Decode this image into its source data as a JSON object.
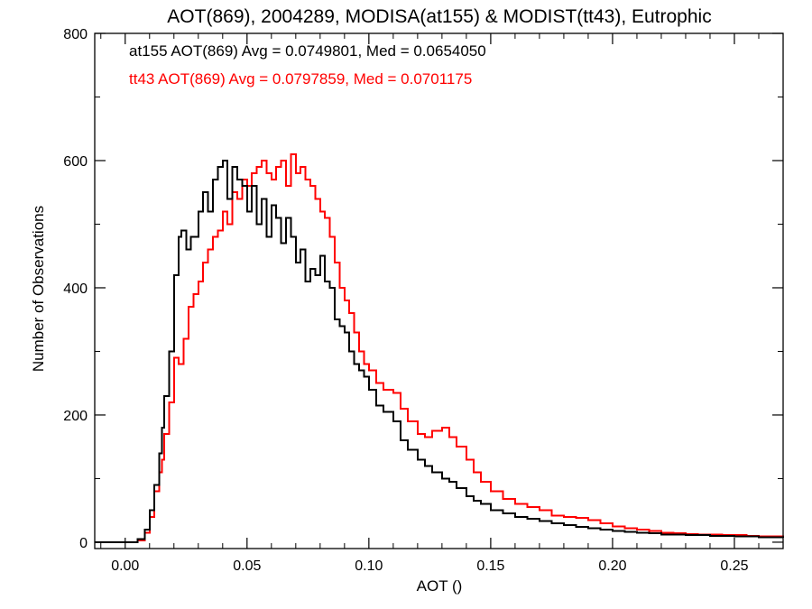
{
  "chart_data": {
    "type": "line",
    "title": "AOT(869), 2004289, MODISA(at155) & MODIST(tt43), Eutrophic",
    "xlabel": "AOT ()",
    "ylabel": "Number of Observations",
    "xlim": [
      -0.0125,
      0.27
    ],
    "ylim": [
      -10,
      800
    ],
    "xticks": [
      0.0,
      0.05,
      0.1,
      0.15,
      0.2,
      0.25
    ],
    "xtick_labels": [
      "0.00",
      "0.05",
      "0.10",
      "0.15",
      "0.20",
      "0.25"
    ],
    "yticks": [
      0,
      200,
      400,
      600,
      800
    ],
    "ytick_labels": [
      "0",
      "200",
      "400",
      "600",
      "800"
    ],
    "grid": false,
    "annotations": [
      {
        "text": "at155 AOT(869) Avg = 0.0749801, Med = 0.0654050",
        "color": "#000000"
      },
      {
        "text": "tt43 AOT(869) Avg = 0.0797859, Med = 0.0701175",
        "color": "#ff0000"
      }
    ],
    "series": [
      {
        "color": "#000000",
        "step": true,
        "x": [
          -0.0125,
          0.0,
          0.005,
          0.008,
          0.01,
          0.012,
          0.014,
          0.015,
          0.016,
          0.018,
          0.02,
          0.022,
          0.023,
          0.025,
          0.027,
          0.03,
          0.032,
          0.034,
          0.036,
          0.038,
          0.04,
          0.042,
          0.044,
          0.046,
          0.048,
          0.05,
          0.052,
          0.054,
          0.056,
          0.058,
          0.06,
          0.062,
          0.064,
          0.066,
          0.068,
          0.07,
          0.072,
          0.074,
          0.076,
          0.078,
          0.08,
          0.082,
          0.084,
          0.086,
          0.088,
          0.09,
          0.092,
          0.094,
          0.096,
          0.098,
          0.1,
          0.103,
          0.106,
          0.11,
          0.113,
          0.116,
          0.12,
          0.123,
          0.126,
          0.13,
          0.133,
          0.136,
          0.14,
          0.143,
          0.146,
          0.15,
          0.155,
          0.16,
          0.165,
          0.17,
          0.175,
          0.18,
          0.185,
          0.19,
          0.195,
          0.2,
          0.205,
          0.21,
          0.215,
          0.22,
          0.225,
          0.23,
          0.235,
          0.24,
          0.245,
          0.25,
          0.255,
          0.26,
          0.265,
          0.27
        ],
        "y": [
          0,
          0,
          5,
          20,
          50,
          90,
          140,
          180,
          230,
          300,
          420,
          480,
          490,
          460,
          480,
          520,
          550,
          520,
          570,
          590,
          600,
          540,
          590,
          570,
          560,
          520,
          560,
          500,
          540,
          480,
          530,
          510,
          470,
          510,
          480,
          440,
          460,
          410,
          430,
          420,
          450,
          410,
          400,
          350,
          340,
          330,
          300,
          280,
          270,
          260,
          240,
          215,
          205,
          190,
          160,
          145,
          130,
          120,
          110,
          100,
          95,
          85,
          72,
          65,
          60,
          50,
          45,
          40,
          37,
          33,
          30,
          27,
          24,
          22,
          20,
          18,
          16,
          15,
          14,
          12,
          12,
          11,
          11,
          10,
          10,
          9,
          9,
          8,
          8,
          7
        ]
      },
      {
        "color": "#ff0000",
        "step": true,
        "x": [
          -0.0125,
          0.0,
          0.005,
          0.008,
          0.01,
          0.012,
          0.014,
          0.015,
          0.016,
          0.018,
          0.02,
          0.022,
          0.024,
          0.026,
          0.028,
          0.03,
          0.032,
          0.034,
          0.036,
          0.038,
          0.04,
          0.042,
          0.044,
          0.046,
          0.048,
          0.05,
          0.052,
          0.054,
          0.056,
          0.058,
          0.06,
          0.062,
          0.064,
          0.066,
          0.068,
          0.07,
          0.072,
          0.074,
          0.076,
          0.078,
          0.08,
          0.082,
          0.084,
          0.086,
          0.088,
          0.09,
          0.092,
          0.094,
          0.096,
          0.098,
          0.1,
          0.103,
          0.106,
          0.11,
          0.113,
          0.116,
          0.12,
          0.123,
          0.126,
          0.13,
          0.133,
          0.136,
          0.14,
          0.143,
          0.146,
          0.15,
          0.155,
          0.16,
          0.165,
          0.17,
          0.175,
          0.18,
          0.185,
          0.19,
          0.195,
          0.2,
          0.205,
          0.21,
          0.215,
          0.22,
          0.225,
          0.23,
          0.235,
          0.24,
          0.245,
          0.25,
          0.255,
          0.26,
          0.265,
          0.27
        ],
        "y": [
          0,
          0,
          3,
          15,
          40,
          80,
          110,
          130,
          170,
          220,
          290,
          280,
          320,
          370,
          390,
          410,
          440,
          460,
          480,
          490,
          520,
          500,
          550,
          540,
          570,
          560,
          580,
          590,
          600,
          580,
          570,
          590,
          600,
          560,
          610,
          580,
          590,
          570,
          560,
          540,
          520,
          510,
          480,
          440,
          400,
          380,
          360,
          330,
          300,
          280,
          270,
          250,
          240,
          235,
          210,
          190,
          170,
          165,
          175,
          180,
          165,
          150,
          130,
          110,
          95,
          80,
          68,
          60,
          55,
          50,
          42,
          40,
          38,
          35,
          30,
          25,
          22,
          20,
          18,
          15,
          14,
          13,
          12,
          12,
          11,
          11,
          10,
          9,
          9,
          8
        ]
      }
    ]
  }
}
